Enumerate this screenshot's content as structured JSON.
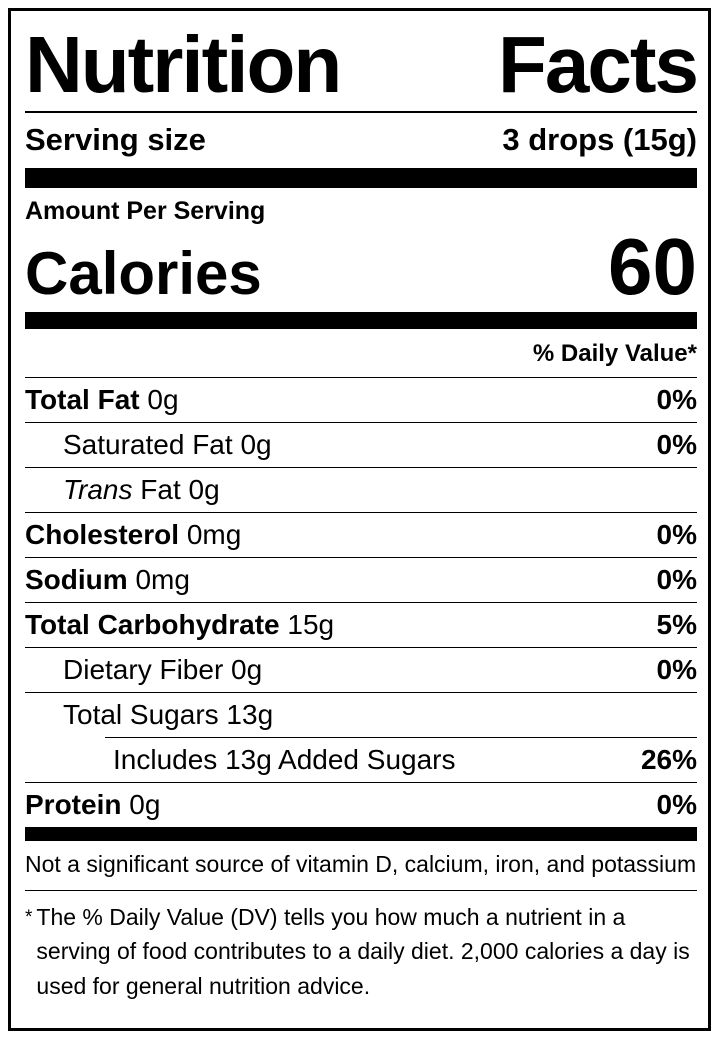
{
  "nutrition": {
    "title_left": "Nutrition",
    "title_right": "Facts",
    "serving_size_label": "Serving size",
    "serving_size_value": "3 drops (15g)",
    "amount_per_serving": "Amount Per Serving",
    "calories_label": "Calories",
    "calories_value": "60",
    "daily_value_header": "% Daily Value*",
    "nutrients": [
      {
        "name": "Total Fat",
        "amount": "0g",
        "dv": "0%"
      },
      {
        "name": "Saturated Fat",
        "amount": "0g",
        "dv": "0%"
      },
      {
        "name": "Trans",
        "amount": "Fat 0g",
        "dv": ""
      },
      {
        "name": "Cholesterol",
        "amount": "0mg",
        "dv": "0%"
      },
      {
        "name": "Sodium",
        "amount": "0mg",
        "dv": "0%"
      },
      {
        "name": "Total Carbohydrate",
        "amount": "15g",
        "dv": "5%"
      },
      {
        "name": "Dietary Fiber",
        "amount": "0g",
        "dv": "0%"
      },
      {
        "name": "Total Sugars",
        "amount": "13g",
        "dv": ""
      },
      {
        "name": "Includes 13g Added Sugars",
        "amount": "",
        "dv": "26%"
      },
      {
        "name": "Protein",
        "amount": "0g",
        "dv": "0%"
      }
    ],
    "not_significant": "Not a significant source of vitamin D, calcium, iron, and potassium",
    "footnote_marker": "*",
    "footnote_text": "The % Daily Value (DV) tells you how much a nutrient in a serving of food contributes to a daily diet. 2,000 calories a day is used for general nutrition advice.",
    "colors": {
      "ink": "#000000",
      "background": "#ffffff"
    }
  }
}
